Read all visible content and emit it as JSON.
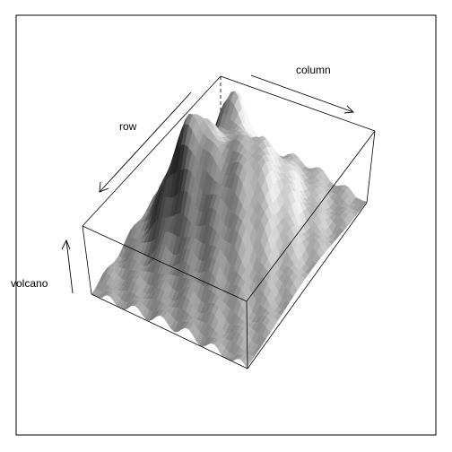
{
  "chart_data": {
    "type": "surface",
    "title": "",
    "axis_labels": {
      "x": "row",
      "y": "column",
      "z": "volcano"
    },
    "view": "perspective, shaded",
    "colors": {
      "mesh_light": "#f2f2f2",
      "mesh_dark": "#1a1a1a",
      "frame": "#000000",
      "background": "#ffffff"
    }
  }
}
